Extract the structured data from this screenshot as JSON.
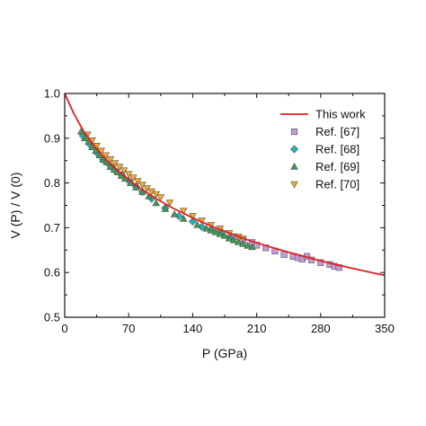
{
  "chart_data": {
    "type": "scatter",
    "xlabel": "P (GPa)",
    "ylabel": "V (P) / V (0)",
    "xlim": [
      0,
      350
    ],
    "ylim": [
      0.5,
      1.0
    ],
    "x_ticks": [
      0,
      70,
      140,
      210,
      280,
      350
    ],
    "x_tick_labels": [
      "0",
      "70",
      "140",
      "210",
      "280",
      "350"
    ],
    "y_ticks": [
      0.5,
      0.6,
      0.7,
      0.8,
      0.9,
      1.0
    ],
    "y_tick_labels": [
      "0.5",
      "0.6",
      "0.7",
      "0.8",
      "0.9",
      "1.0"
    ],
    "grid": false,
    "legend_position": "top-right",
    "series": [
      {
        "name": "This work",
        "kind": "line",
        "color": "#e02020",
        "x": [
          0,
          10,
          20,
          30,
          40,
          50,
          60,
          70,
          80,
          90,
          100,
          120,
          140,
          160,
          180,
          200,
          220,
          240,
          260,
          280,
          300,
          320,
          340,
          350
        ],
        "y": [
          1.0,
          0.955,
          0.918,
          0.889,
          0.864,
          0.843,
          0.824,
          0.808,
          0.792,
          0.778,
          0.765,
          0.742,
          0.722,
          0.704,
          0.688,
          0.673,
          0.66,
          0.648,
          0.637,
          0.626,
          0.616,
          0.607,
          0.598,
          0.594
        ]
      },
      {
        "name": "Ref. [67]",
        "kind": "marker",
        "marker": "square",
        "color": "#c59ad8",
        "x": [
          170,
          185,
          195,
          205,
          210,
          220,
          230,
          240,
          250,
          255,
          260,
          265,
          270,
          280,
          290,
          295,
          300
        ],
        "y": [
          0.69,
          0.68,
          0.672,
          0.667,
          0.661,
          0.655,
          0.648,
          0.64,
          0.636,
          0.633,
          0.63,
          0.636,
          0.628,
          0.622,
          0.618,
          0.614,
          0.611
        ]
      },
      {
        "name": "Ref. [68]",
        "kind": "marker",
        "marker": "diamond",
        "color": "#22b5b5",
        "x": [
          20,
          28,
          35,
          42,
          50,
          55,
          62,
          70,
          78,
          85,
          95,
          110,
          125,
          140,
          150,
          160,
          170,
          180
        ],
        "y": [
          0.905,
          0.885,
          0.868,
          0.852,
          0.838,
          0.828,
          0.818,
          0.805,
          0.792,
          0.78,
          0.765,
          0.744,
          0.726,
          0.714,
          0.702,
          0.696,
          0.688,
          0.678
        ]
      },
      {
        "name": "Ref. [69]",
        "kind": "marker",
        "marker": "triangle-up",
        "color": "#3e9a55",
        "x": [
          18,
          22,
          26,
          30,
          34,
          38,
          42,
          46,
          50,
          54,
          58,
          62,
          66,
          72,
          78,
          85,
          92,
          100,
          110,
          120,
          130,
          145,
          155,
          160,
          165,
          170,
          175,
          180,
          185,
          190,
          195,
          200,
          205
        ],
        "y": [
          0.915,
          0.9,
          0.892,
          0.88,
          0.872,
          0.862,
          0.852,
          0.846,
          0.836,
          0.83,
          0.824,
          0.816,
          0.81,
          0.8,
          0.79,
          0.78,
          0.77,
          0.755,
          0.742,
          0.73,
          0.72,
          0.706,
          0.698,
          0.694,
          0.69,
          0.686,
          0.682,
          0.676,
          0.672,
          0.668,
          0.664,
          0.66,
          0.657
        ]
      },
      {
        "name": "Ref. [70]",
        "kind": "marker",
        "marker": "triangle-down",
        "color": "#f2aa2a",
        "x": [
          25,
          30,
          35,
          40,
          45,
          50,
          55,
          60,
          65,
          70,
          75,
          80,
          85,
          90,
          95,
          100,
          105,
          115,
          130,
          140,
          150,
          160,
          170,
          180,
          190,
          195
        ],
        "y": [
          0.908,
          0.895,
          0.883,
          0.872,
          0.862,
          0.853,
          0.844,
          0.836,
          0.828,
          0.82,
          0.812,
          0.804,
          0.796,
          0.788,
          0.781,
          0.775,
          0.768,
          0.756,
          0.738,
          0.726,
          0.716,
          0.706,
          0.698,
          0.688,
          0.68,
          0.676
        ]
      }
    ]
  }
}
